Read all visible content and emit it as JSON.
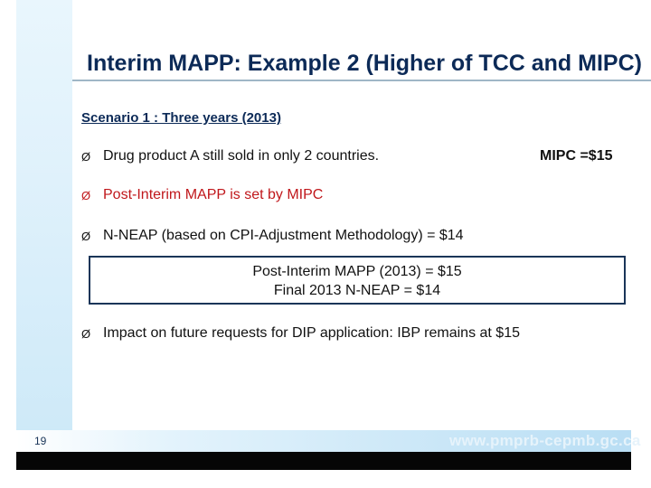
{
  "slide": {
    "title": "Interim MAPP: Example 2 (Higher of TCC and MIPC)",
    "scenario": "Scenario 1 : Three years (2013)",
    "bullets": [
      "Drug product A still sold in only 2 countries.",
      "Post-Interim MAPP is set by MIPC",
      "N-NEAP (based on CPI-Adjustment Methodology) = $14",
      "Impact on future requests for DIP application: IBP remains at $15"
    ],
    "bullet_marker": "Ø",
    "mipc_note": "MIPC =$15",
    "result_box": {
      "line1": "Post-Interim MAPP (2013) = $15",
      "line2": "Final 2013 N-NEAP = $14"
    },
    "footer": {
      "page_number": "19",
      "website": "www.pmprb-cepmb.gc.ca"
    },
    "colors": {
      "title": "#0c2a57",
      "highlight_bullet": "#c0171b",
      "box_border": "#1a3558"
    }
  }
}
